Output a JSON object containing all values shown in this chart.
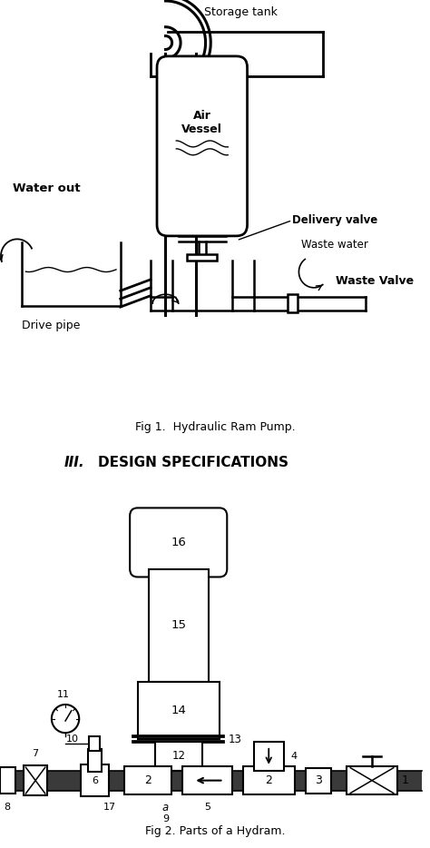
{
  "fig1_caption": "Fig 1.  Hydraulic Ram Pump.",
  "fig2_caption": "Fig 2. Parts of a Hydram.",
  "section_num": "III.",
  "section_title": "DESIGN SPECIFICATIONS",
  "background_color": "#ffffff",
  "line_color": "#000000",
  "lw": 1.8,
  "storage_tank_label": "Storage tank",
  "water_out_label": "Water out",
  "air_vessel_label": "Air\nVessel",
  "delivery_valve_label": "Delivery valve",
  "waste_water_label": "Waste water",
  "waste_valve_label": "Waste Valve",
  "drive_pipe_label": "Drive pipe"
}
